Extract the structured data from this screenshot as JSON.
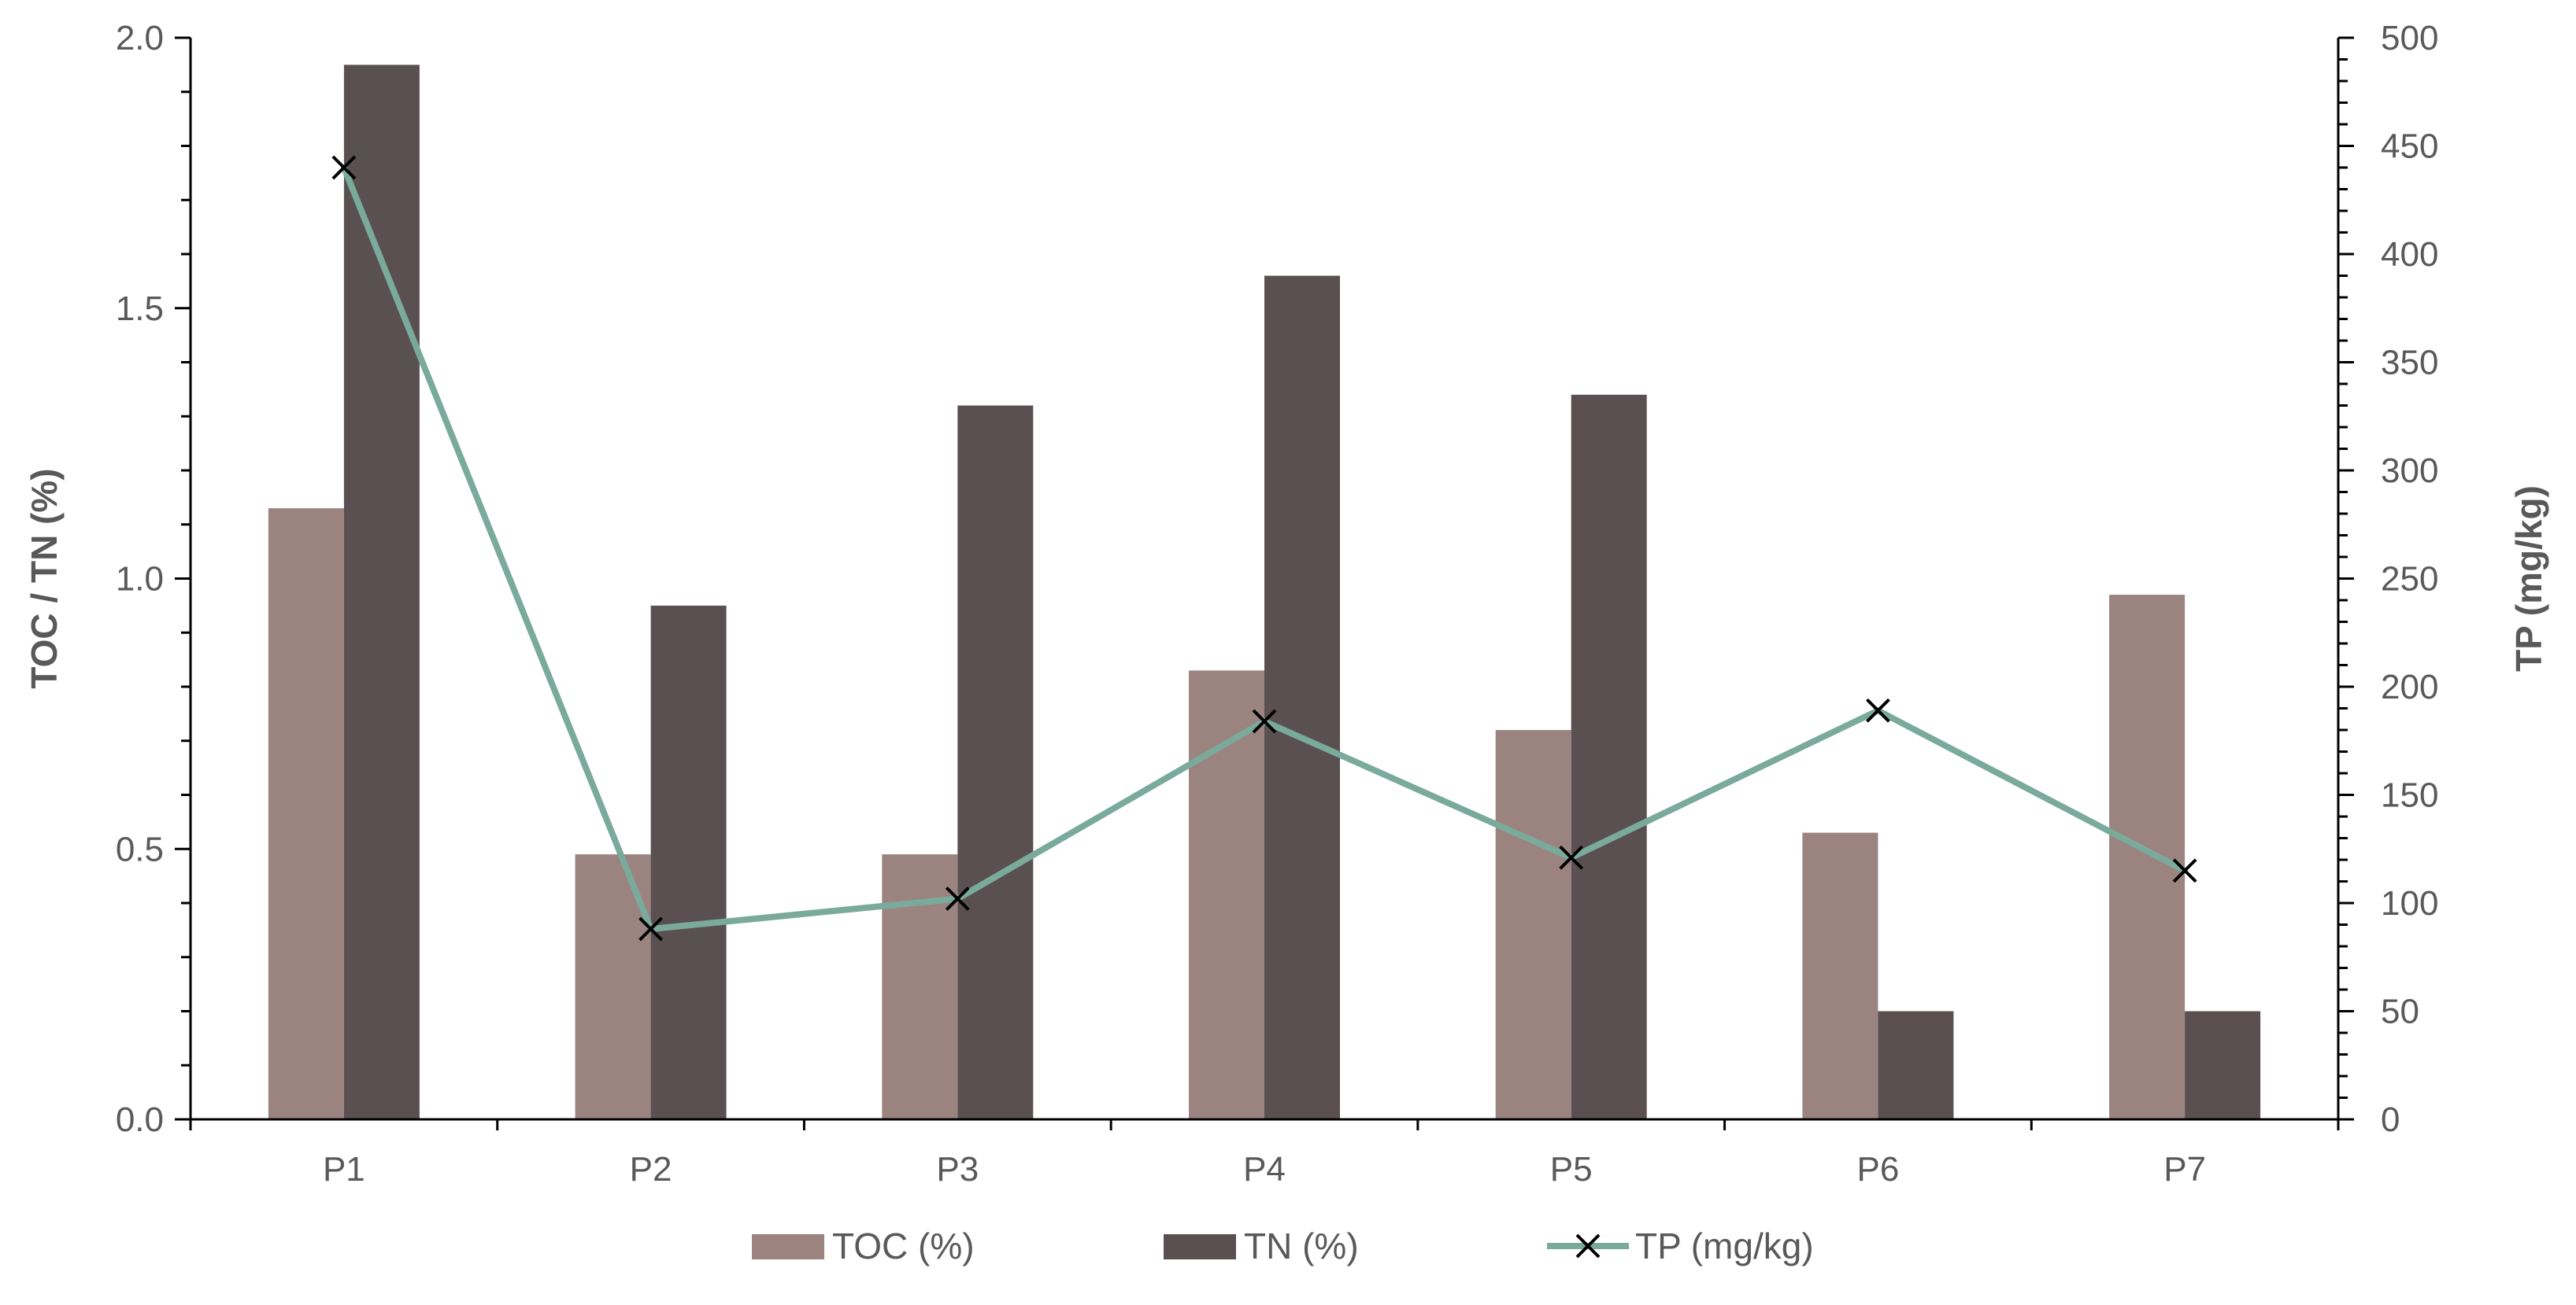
{
  "chart_data": {
    "type": "bar",
    "categories": [
      "P1",
      "P2",
      "P3",
      "P4",
      "P5",
      "P6",
      "P7"
    ],
    "series": [
      {
        "name": "TOC (%)",
        "kind": "bar",
        "axis": "left",
        "color": "#9b8380",
        "values": [
          1.13,
          0.49,
          0.49,
          0.83,
          0.72,
          0.53,
          0.97
        ]
      },
      {
        "name": "TN (%)",
        "kind": "bar",
        "axis": "left",
        "color": "#5a5051",
        "values": [
          1.95,
          0.95,
          1.32,
          1.56,
          1.34,
          0.2,
          0.2
        ]
      },
      {
        "name": "TP (mg/kg)",
        "kind": "line",
        "marker": "x",
        "axis": "right",
        "color": "#7aaa9c",
        "values": [
          440,
          88,
          102,
          184,
          121,
          189,
          115
        ]
      }
    ],
    "y_left": {
      "label": "TOC / TN (%)",
      "lim": [
        0,
        2
      ],
      "ticks": [
        "0.0",
        "0.5",
        "1.0",
        "1.5",
        "2.0"
      ]
    },
    "y_right": {
      "label": "TP (mg/kg)",
      "lim": [
        0,
        500
      ],
      "ticks": [
        "0",
        "50",
        "100",
        "150",
        "200",
        "250",
        "300",
        "350",
        "400",
        "450",
        "500"
      ]
    },
    "grid": false,
    "legend": "bottom",
    "axis_color": "#000000",
    "marker_color": "#000000"
  }
}
